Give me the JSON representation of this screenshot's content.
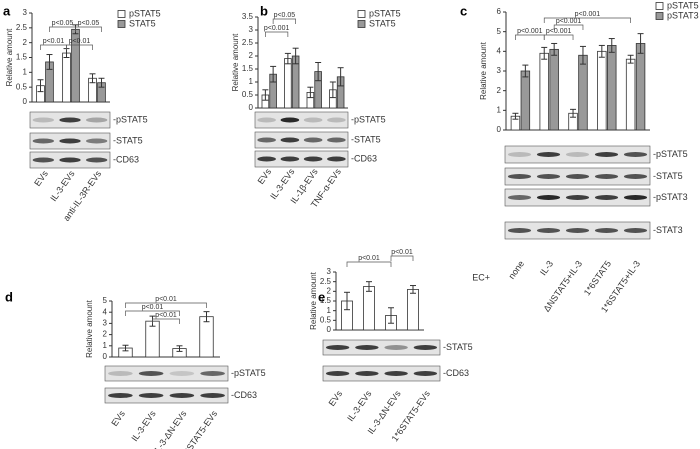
{
  "chart_data": [
    {
      "type": "bar",
      "panel": "a",
      "ylabel": "Relative amount",
      "ylim": [
        0,
        3
      ],
      "yticks": [
        0,
        0.5,
        1,
        1.5,
        2,
        2.5,
        3
      ],
      "categories": [
        "EVs",
        "IL-3-EVs",
        "anti-IL-3R-EVs"
      ],
      "series": [
        {
          "name": "pSTAT5",
          "color": "#ffffff",
          "values": [
            0.55,
            1.65,
            0.8
          ],
          "errors": [
            0.2,
            0.15,
            0.15
          ]
        },
        {
          "name": "STAT5",
          "color": "#999999",
          "values": [
            1.35,
            2.45,
            0.65
          ],
          "errors": [
            0.25,
            0.15,
            0.15
          ]
        }
      ],
      "annotations": [
        "p<0.05",
        "p<0.05",
        "p<0.01",
        "p<0.01"
      ],
      "blot_labels": [
        "-pSTAT5",
        "-STAT5",
        "-CD63"
      ]
    },
    {
      "type": "bar",
      "panel": "b",
      "ylabel": "Relative amount",
      "ylim": [
        0,
        3.5
      ],
      "yticks": [
        0,
        0.5,
        1,
        1.5,
        2,
        2.5,
        3,
        3.5
      ],
      "categories": [
        "EVs",
        "IL-3-EVs",
        "IL-1β-EVs",
        "TNF-α-EVs"
      ],
      "series": [
        {
          "name": "pSTAT5",
          "color": "#ffffff",
          "values": [
            0.5,
            1.9,
            0.6,
            0.7
          ],
          "errors": [
            0.2,
            0.2,
            0.2,
            0.3
          ]
        },
        {
          "name": "STAT5",
          "color": "#999999",
          "values": [
            1.3,
            2.0,
            1.4,
            1.2
          ],
          "errors": [
            0.3,
            0.3,
            0.35,
            0.35
          ]
        }
      ],
      "annotations": [
        "p<0.05",
        "p<0.001"
      ],
      "blot_labels": [
        "-pSTAT5",
        "-STAT5",
        "-CD63"
      ]
    },
    {
      "type": "bar",
      "panel": "c",
      "ylabel": "Relative amount",
      "ylim": [
        0,
        6
      ],
      "yticks": [
        0,
        1,
        2,
        3,
        4,
        5,
        6
      ],
      "categories": [
        "none",
        "IL-3",
        "ΔNSTAT5+IL-3",
        "1*6STAT5",
        "1*6STAT5+IL-3"
      ],
      "series": [
        {
          "name": "pSTAT5",
          "color": "#ffffff",
          "values": [
            0.7,
            3.9,
            0.85,
            4.0,
            3.6
          ],
          "errors": [
            0.15,
            0.3,
            0.2,
            0.3,
            0.2
          ]
        },
        {
          "name": "pSTAT3",
          "color": "#999999",
          "values": [
            3.0,
            4.1,
            3.8,
            4.3,
            4.4
          ],
          "errors": [
            0.3,
            0.3,
            0.45,
            0.35,
            0.5
          ]
        }
      ],
      "annotations": [
        "p<0.001",
        "p<0.001",
        "p<0.001",
        "p<0.001"
      ],
      "blot_labels": [
        "-pSTAT5",
        "-STAT5",
        "-pSTAT3",
        "-STAT3"
      ],
      "row_label": "EC+"
    },
    {
      "type": "bar",
      "panel": "d",
      "ylabel": "Relative amount",
      "ylim": [
        0,
        5
      ],
      "yticks": [
        0,
        1,
        2,
        3,
        4,
        5
      ],
      "categories": [
        "EVs",
        "IL-3-EVs",
        "IL-3-ΔN-EVs",
        "1*6STAT5-EVs"
      ],
      "series": [
        {
          "color": "#ffffff",
          "values": [
            0.8,
            3.2,
            0.75,
            3.6
          ],
          "errors": [
            0.25,
            0.45,
            0.25,
            0.45
          ]
        }
      ],
      "annotations": [
        "p<0.01",
        "p<0.01",
        "p<0.01"
      ],
      "blot_labels": [
        "-pSTAT5",
        "-CD63"
      ]
    },
    {
      "type": "bar",
      "panel": "e",
      "ylabel": "Relative amount",
      "ylim": [
        0,
        3
      ],
      "yticks": [
        0,
        0.5,
        1,
        1.5,
        2,
        2.5,
        3
      ],
      "categories": [
        "EVs",
        "IL-3-EVs",
        "IL-3-ΔN-EVs",
        "1*6STAT5-EVs"
      ],
      "series": [
        {
          "color": "#ffffff",
          "values": [
            1.5,
            2.25,
            0.75,
            2.1
          ],
          "errors": [
            0.45,
            0.25,
            0.4,
            0.2
          ]
        }
      ],
      "annotations": [
        "p<0.01",
        "p<0.01"
      ],
      "blot_labels": [
        "-STAT5",
        "-CD63"
      ]
    }
  ]
}
